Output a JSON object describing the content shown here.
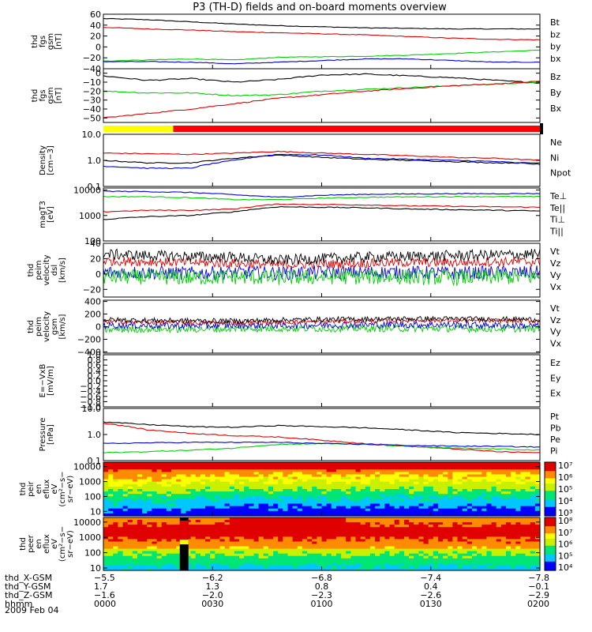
{
  "title": "P3 (TH-D) fields and on-board moments overview",
  "date_label": "2009 Feb 04",
  "colors": {
    "black": "#000000",
    "red": "#e00000",
    "green": "#00d000",
    "blue": "#0000e0",
    "yellow": "#ffff00",
    "band_red": "#ff0000"
  },
  "chart_data": [
    {
      "type": "line",
      "id": "fgs_gsm",
      "ylabel_lines": [
        "thd",
        "fgs",
        "gsm",
        "[nT]"
      ],
      "ylim": [
        -40,
        60
      ],
      "yticks": [
        "60",
        "40",
        "20",
        "0",
        "−20",
        "−40"
      ],
      "legend": [
        {
          "name": "Bt",
          "color": "#000000"
        },
        {
          "name": "bz",
          "color": "#e00000"
        },
        {
          "name": "by",
          "color": "#00d000"
        },
        {
          "name": "bx",
          "color": "#0000e0"
        }
      ],
      "series": [
        {
          "name": "Bt",
          "color": "#000000",
          "values": [
            52,
            50,
            46,
            42,
            39,
            37,
            35,
            34,
            33,
            33,
            33
          ]
        },
        {
          "name": "bz",
          "color": "#e00000",
          "values": [
            36,
            33,
            31,
            28,
            26,
            24,
            22,
            19,
            16,
            14,
            13
          ]
        },
        {
          "name": "by",
          "color": "#00d000",
          "values": [
            -26,
            -24,
            -22,
            -24,
            -19,
            -18,
            -17,
            -15,
            -12,
            -9,
            -6
          ]
        },
        {
          "name": "bx",
          "color": "#0000e0",
          "values": [
            -27,
            -27,
            -28,
            -31,
            -28,
            -25,
            -22,
            -22,
            -25,
            -28,
            -28
          ]
        }
      ]
    },
    {
      "type": "line",
      "id": "fgs_gsm_zoom",
      "ylabel_lines": [
        "thd",
        "fgs",
        "gsm",
        "[nT]"
      ],
      "ylim": [
        -55,
        5
      ],
      "yticks": [
        "0",
        "−10",
        "−20",
        "−30",
        "−40",
        "−50"
      ],
      "legend": [
        {
          "name": "Bz",
          "color": "#e00000"
        },
        {
          "name": "By",
          "color": "#00d000"
        },
        {
          "name": "Bx",
          "color": "#000000"
        }
      ],
      "series": [
        {
          "name": "Bx",
          "color": "#000000",
          "values": [
            -3,
            -8,
            -6,
            -10,
            -7,
            -2,
            -1,
            -3,
            -5,
            -8,
            -11
          ]
        },
        {
          "name": "By",
          "color": "#00d000",
          "values": [
            -20,
            -22,
            -22,
            -25,
            -24,
            -20,
            -18,
            -16,
            -14,
            -12,
            -10
          ]
        },
        {
          "name": "Bz",
          "color": "#e00000",
          "values": [
            -50,
            -45,
            -40,
            -34,
            -28,
            -24,
            -20,
            -17,
            -14,
            -12,
            -9
          ]
        }
      ]
    },
    {
      "type": "band",
      "id": "mode_bar",
      "segments": [
        {
          "color": "#ffff00",
          "from": 0.0,
          "to": 0.16
        },
        {
          "color": "#ff0000",
          "from": 0.16,
          "to": 1.0
        }
      ]
    },
    {
      "type": "line",
      "id": "density",
      "log": true,
      "ylabel_lines": [
        "Density",
        "[cm−3]"
      ],
      "ylim": [
        0.1,
        10.0
      ],
      "yticks": [
        "10.0",
        "1.0",
        "0.1"
      ],
      "legend": [
        {
          "name": "Ne",
          "color": "#e00000"
        },
        {
          "name": "Ni",
          "color": "#000000"
        },
        {
          "name": "Npot",
          "color": "#0000e0"
        }
      ],
      "series": [
        {
          "name": "Ne",
          "color": "#e00000",
          "values": [
            1.9,
            1.8,
            1.7,
            1.9,
            2.2,
            1.9,
            1.7,
            1.5,
            1.3,
            1.2,
            1.0
          ]
        },
        {
          "name": "Ni",
          "color": "#000000",
          "values": [
            1.0,
            0.8,
            0.8,
            1.2,
            1.6,
            1.3,
            1.1,
            1.0,
            0.9,
            0.8,
            0.8
          ]
        },
        {
          "name": "Npot",
          "color": "#0000e0",
          "values": [
            0.6,
            0.5,
            0.5,
            1.0,
            1.7,
            1.6,
            1.2,
            1.1,
            1.0,
            0.9,
            0.7
          ]
        }
      ]
    },
    {
      "type": "line",
      "id": "temperature",
      "log": true,
      "ylabel_lines": [
        "magT3",
        "[eV]"
      ],
      "ylim": [
        100,
        12000
      ],
      "yticks": [
        "10000",
        "1000",
        "100"
      ],
      "legend": [
        {
          "name": "Te⊥",
          "color": "#e00000"
        },
        {
          "name": "Te||",
          "color": "#000000"
        },
        {
          "name": "Ti⊥",
          "color": "#0000e0"
        },
        {
          "name": "Ti||",
          "color": "#00d000"
        }
      ],
      "series": [
        {
          "name": "Ti⊥",
          "color": "#0000e0",
          "values": [
            9000,
            8700,
            8000,
            6500,
            5200,
            6200,
            6800,
            7000,
            7200,
            7200,
            7300
          ]
        },
        {
          "name": "Ti||",
          "color": "#00d000",
          "values": [
            5500,
            5500,
            5000,
            4200,
            4200,
            4800,
            5200,
            5400,
            5500,
            5500,
            5500
          ]
        },
        {
          "name": "Te⊥",
          "color": "#e00000",
          "values": [
            1400,
            1600,
            1600,
            1800,
            2800,
            2700,
            2600,
            2400,
            2300,
            2200,
            2100
          ]
        },
        {
          "name": "Te||",
          "color": "#000000",
          "values": [
            700,
            900,
            1000,
            1400,
            2200,
            2100,
            2000,
            1800,
            1700,
            1600,
            1500
          ]
        }
      ]
    },
    {
      "type": "line",
      "id": "velocity_dsl",
      "noisy": true,
      "ylabel_lines": [
        "thd",
        "peim",
        "velocity",
        "dsl",
        "[km/s]"
      ],
      "ylim": [
        -30,
        40
      ],
      "yticks": [
        "40",
        "20",
        "0",
        "−20"
      ],
      "legend": [
        {
          "name": "Vt",
          "color": "#000000"
        },
        {
          "name": "Vz",
          "color": "#e00000"
        },
        {
          "name": "Vy",
          "color": "#00d000"
        },
        {
          "name": "Vx",
          "color": "#0000e0"
        }
      ],
      "series": [
        {
          "name": "Vx",
          "color": "#0000e0",
          "values": [
            2,
            2,
            1,
            2,
            1,
            2,
            2,
            2,
            1,
            2,
            2
          ],
          "noise": 9
        },
        {
          "name": "Vy",
          "color": "#00d000",
          "values": [
            -4,
            -4,
            -5,
            -4,
            -5,
            -4,
            -4,
            -4,
            -5,
            -4,
            -4
          ],
          "noise": 10
        },
        {
          "name": "Vz",
          "color": "#e00000",
          "values": [
            17,
            16,
            15,
            14,
            12,
            13,
            14,
            15,
            15,
            16,
            16
          ],
          "noise": 6
        },
        {
          "name": "Vt",
          "color": "#000000",
          "values": [
            26,
            24,
            23,
            22,
            18,
            20,
            22,
            23,
            24,
            25,
            26
          ],
          "noise": 7
        }
      ]
    },
    {
      "type": "line",
      "id": "velocity_gsm",
      "noisy": true,
      "ylabel_lines": [
        "thd",
        "peim",
        "velocity",
        "gsm",
        "[km/s]"
      ],
      "ylim": [
        -420,
        420
      ],
      "yticks": [
        "400",
        "200",
        "0",
        "−200",
        "−400"
      ],
      "legend": [
        {
          "name": "Vt",
          "color": "#000000"
        },
        {
          "name": "Vz",
          "color": "#e00000"
        },
        {
          "name": "Vy",
          "color": "#00d000"
        },
        {
          "name": "Vx",
          "color": "#0000e0"
        }
      ],
      "series": [
        {
          "name": "Vy",
          "color": "#00d000",
          "values": [
            -50,
            -40,
            -40,
            -35,
            -30,
            -30,
            -30,
            -30,
            -30,
            -35,
            -35
          ],
          "noise": 55
        },
        {
          "name": "Vx",
          "color": "#0000e0",
          "values": [
            20,
            20,
            15,
            20,
            20,
            25,
            30,
            30,
            30,
            20,
            10
          ],
          "noise": 55
        },
        {
          "name": "Vz",
          "color": "#e00000",
          "values": [
            80,
            70,
            65,
            60,
            70,
            80,
            90,
            100,
            100,
            95,
            90
          ],
          "noise": 35
        },
        {
          "name": "Vt",
          "color": "#000000",
          "values": [
            110,
            100,
            95,
            90,
            105,
            115,
            120,
            125,
            125,
            120,
            115
          ],
          "noise": 40
        }
      ]
    },
    {
      "type": "line",
      "id": "efield",
      "ylabel_lines": [
        "E=−VxB",
        "[mV/m]"
      ],
      "ylim": [
        -1.0,
        1.0
      ],
      "yticks": [
        "1.0",
        "0.8",
        "0.6",
        "0.4",
        "0.2",
        "0.0",
        "−0.2",
        "−0.4",
        "−0.6",
        "−0.8",
        "−1.0"
      ],
      "legend": [
        {
          "name": "Ez",
          "color": "#e00000"
        },
        {
          "name": "Ey",
          "color": "#00d000"
        },
        {
          "name": "Ex",
          "color": "#0000e0"
        }
      ],
      "series": []
    },
    {
      "type": "line",
      "id": "pressure",
      "log": true,
      "ylabel_lines": [
        "Pressure",
        "[nPa]"
      ],
      "ylim": [
        0.1,
        10.0
      ],
      "yticks": [
        "10.0",
        "1.0",
        "0.1"
      ],
      "legend": [
        {
          "name": "Pt",
          "color": "#000000"
        },
        {
          "name": "Pb",
          "color": "#e00000"
        },
        {
          "name": "Pe",
          "color": "#00d000"
        },
        {
          "name": "Pi",
          "color": "#0000e0"
        }
      ],
      "series": [
        {
          "name": "Pt",
          "color": "#000000",
          "values": [
            3.0,
            2.4,
            2.0,
            1.9,
            2.2,
            2.0,
            1.8,
            1.5,
            1.2,
            1.1,
            1.0
          ]
        },
        {
          "name": "Pb",
          "color": "#e00000",
          "values": [
            2.7,
            1.5,
            1.1,
            0.9,
            0.8,
            0.6,
            0.45,
            0.35,
            0.28,
            0.22,
            0.2
          ]
        },
        {
          "name": "Pe",
          "color": "#00d000",
          "values": [
            0.2,
            0.22,
            0.25,
            0.3,
            0.42,
            0.45,
            0.42,
            0.35,
            0.3,
            0.28,
            0.25
          ]
        },
        {
          "name": "Pi",
          "color": "#0000e0",
          "values": [
            0.45,
            0.48,
            0.5,
            0.5,
            0.5,
            0.45,
            0.42,
            0.38,
            0.36,
            0.35,
            0.33
          ]
        }
      ]
    },
    {
      "type": "heatmap",
      "id": "ion_spectrogram",
      "ylabel_lines": [
        "thd",
        "peir",
        "en",
        "eflux",
        "eV",
        "(cm²−s−",
        "sr−eV)"
      ],
      "ylim": [
        5,
        20000
      ],
      "yticks": [
        "10000",
        "1000",
        "100",
        "10"
      ],
      "colorbar_labels": [
        "10⁷",
        "10⁶",
        "10⁵",
        "10⁴",
        "10³"
      ]
    },
    {
      "type": "heatmap",
      "id": "electron_spectrogram",
      "ylabel_lines": [
        "thd",
        "peer",
        "en",
        "eflux",
        "eV",
        "(cm²−s−",
        "sr−eV)"
      ],
      "ylim": [
        7,
        20000
      ],
      "yticks": [
        "10000",
        "1000",
        "100",
        "10"
      ],
      "colorbar_labels": [
        "10⁸",
        "10⁷",
        "10⁶",
        "10⁵",
        "10⁴"
      ]
    }
  ],
  "x_axis": {
    "row_labels": [
      "thd_X-GSM",
      "thd_Y-GSM",
      "thd_Z-GSM",
      "hhmm"
    ],
    "columns": [
      {
        "values": [
          "−5.5",
          "1.7",
          "−1.6",
          "0000"
        ]
      },
      {
        "values": [
          "−6.2",
          "1.3",
          "−2.0",
          "0030"
        ]
      },
      {
        "values": [
          "−6.8",
          "0.8",
          "−2.3",
          "0100"
        ]
      },
      {
        "values": [
          "−7.4",
          "0.4",
          "−2.6",
          "0130"
        ]
      },
      {
        "values": [
          "−7.8",
          "−0.1",
          "−2.9",
          "0200"
        ]
      }
    ]
  }
}
